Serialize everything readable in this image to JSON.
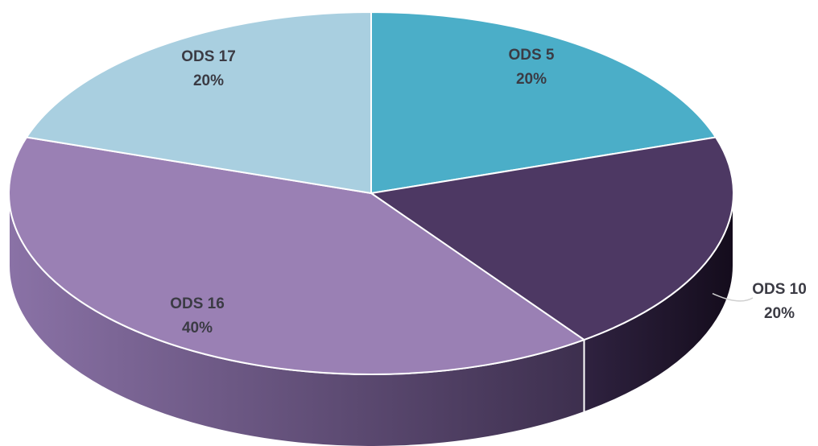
{
  "chart_data": {
    "type": "pie",
    "title": "",
    "slices": [
      {
        "name": "ODS 5",
        "value": 20,
        "label": "20%",
        "color": "#4BAEC8"
      },
      {
        "name": "ODS 10",
        "value": 20,
        "label": "20%",
        "color": "#4D3863"
      },
      {
        "name": "ODS 16",
        "value": 40,
        "label": "40%",
        "color": "#9A80B4"
      },
      {
        "name": "ODS 17",
        "value": 20,
        "label": "20%",
        "color": "#A9CFE0"
      }
    ],
    "style": "3d",
    "legend": "none"
  }
}
